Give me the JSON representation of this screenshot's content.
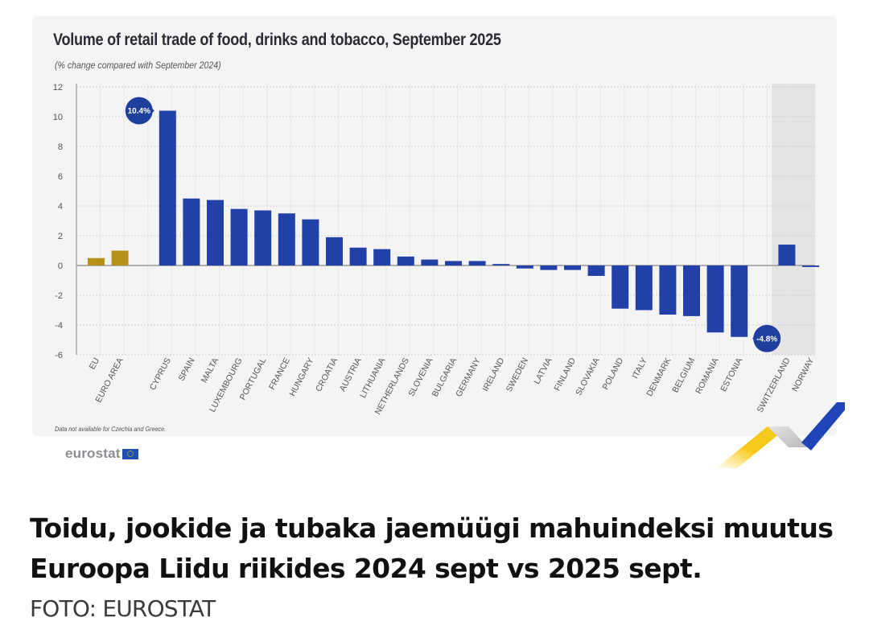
{
  "chart_data": {
    "type": "bar",
    "title": "Volume of retail trade of food, drinks and tobacco, September 2025",
    "subtitle": "(% change compared with September 2024)",
    "xlabel": "",
    "ylabel": "",
    "ylim": [
      -6,
      12
    ],
    "yticks": [
      12,
      10,
      8,
      6,
      4,
      2,
      0,
      -2,
      -4,
      -6
    ],
    "grid": true,
    "categories": [
      "EU",
      "EURO AREA",
      "CYPRUS",
      "SPAIN",
      "MALTA",
      "LUXEMBOURG",
      "PORTUGAL",
      "FRANCE",
      "HUNGARY",
      "CROATIA",
      "AUSTRIA",
      "LITHUANIA",
      "NETHERLANDS",
      "SLOVENIA",
      "BULGARIA",
      "GERMANY",
      "IRELAND",
      "SWEDEN",
      "LATVIA",
      "FINLAND",
      "SLOVAKIA",
      "POLAND",
      "ITALY",
      "DENMARK",
      "BELGIUM",
      "ROMANIA",
      "ESTONIA",
      "SWITZERLAND",
      "NORWAY"
    ],
    "groups": [
      "aggregate",
      "aggregate",
      "member",
      "member",
      "member",
      "member",
      "member",
      "member",
      "member",
      "member",
      "member",
      "member",
      "member",
      "member",
      "member",
      "member",
      "member",
      "member",
      "member",
      "member",
      "member",
      "member",
      "member",
      "member",
      "member",
      "member",
      "member",
      "non-eu",
      "non-eu"
    ],
    "values": [
      0.5,
      1.0,
      10.4,
      4.5,
      4.4,
      3.8,
      3.7,
      3.5,
      3.1,
      1.9,
      1.2,
      1.1,
      0.6,
      0.4,
      0.3,
      0.3,
      0.1,
      -0.2,
      -0.3,
      -0.3,
      -0.7,
      -2.9,
      -3.0,
      -3.3,
      -3.4,
      -4.5,
      -4.8,
      1.4,
      -0.1
    ],
    "annotations": [
      {
        "category": "CYPRUS",
        "text": "10.4%"
      },
      {
        "category": "ESTONIA",
        "text": "-4.8%"
      }
    ],
    "colors": {
      "aggregate": "#b8901c",
      "member": "#2140a8",
      "non_eu_band": "#e4e4e4"
    },
    "note": "Data not available for Czechia and Greece."
  },
  "branding": {
    "logo_text": "eurostat",
    "flag_icon": "eu-flag-icon"
  },
  "caption": {
    "text": "Toidu, jookide ja tubaka jaemüügi mahuindeksi muutus Euroopa Liidu riikides 2024 sept vs 2025 sept.",
    "credit": "FOTO: EUROSTAT"
  }
}
